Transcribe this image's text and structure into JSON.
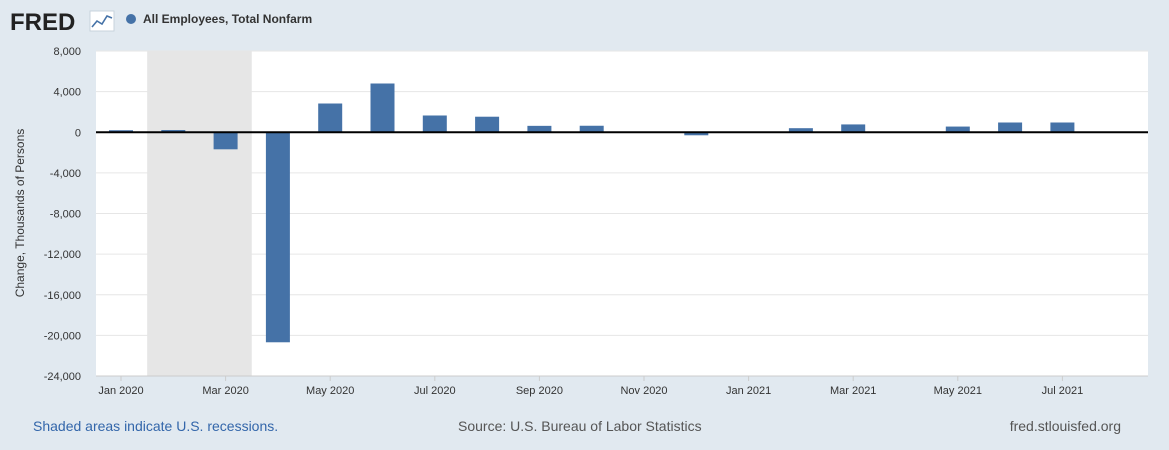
{
  "header": {
    "logo_text": "FRED",
    "logo_icon": "line-chart-icon"
  },
  "chart_data": {
    "type": "bar",
    "title": "",
    "legend": [
      "All Employees, Total Nonfarm"
    ],
    "legend_position": "top-left",
    "series_color": "#4572a7",
    "ylabel": "Change, Thousands of Persons",
    "xlabel": "",
    "ylim": [
      -24000,
      8000
    ],
    "yticks": [
      8000,
      4000,
      0,
      -4000,
      -8000,
      -12000,
      -16000,
      -20000,
      -24000
    ],
    "ytick_labels": [
      "8,000",
      "4,000",
      "0",
      "-4,000",
      "-8,000",
      "-12,000",
      "-16,000",
      "-20,000",
      "-24,000"
    ],
    "xtick_labels": [
      "Jan 2020",
      "Mar 2020",
      "May 2020",
      "Jul 2020",
      "Sep 2020",
      "Nov 2020",
      "Jan 2021",
      "Mar 2021",
      "May 2021",
      "Jul 2021"
    ],
    "categories": [
      "Jan 2020",
      "Feb 2020",
      "Mar 2020",
      "Apr 2020",
      "May 2020",
      "Jun 2020",
      "Jul 2020",
      "Aug 2020",
      "Sep 2020",
      "Oct 2020",
      "Nov 2020",
      "Dec 2020",
      "Jan 2021",
      "Feb 2021",
      "Mar 2021",
      "Apr 2021",
      "May 2021",
      "Jun 2021",
      "Jul 2021"
    ],
    "values": [
      200,
      220,
      -1680,
      -20680,
      2830,
      4800,
      1650,
      1530,
      630,
      640,
      0,
      -300,
      0,
      400,
      770,
      0,
      560,
      960,
      960
    ],
    "recession": {
      "start": "Feb 2020",
      "end": "Apr 2020"
    },
    "grid": true
  },
  "footer": {
    "recession_note": "Shaded areas indicate U.S. recessions.",
    "source": "Source: U.S. Bureau of Labor Statistics",
    "site": "fred.stlouisfed.org"
  }
}
